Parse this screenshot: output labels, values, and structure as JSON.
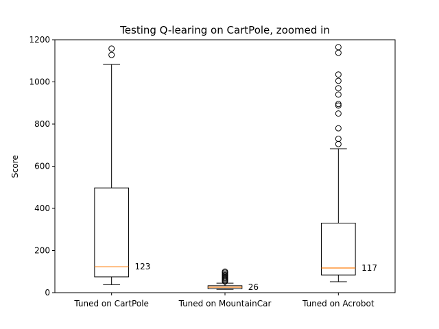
{
  "chart_data": {
    "type": "box",
    "title": "Testing Q-learing on CartPole, zoomed in",
    "xlabel": "",
    "ylabel": "Score",
    "ylim": [
      0,
      1200
    ],
    "yticks": [
      0,
      200,
      400,
      600,
      800,
      1000,
      1200
    ],
    "categories": [
      "Tuned on CartPole",
      "Tuned on MountainCar",
      "Tuned on Acrobot"
    ],
    "boxes": [
      {
        "label": "Tuned on CartPole",
        "whisker_low": 38,
        "q1": 75,
        "median": 123,
        "q3": 497,
        "whisker_high": 1083,
        "outliers": [
          1128,
          1158
        ],
        "median_label": "123"
      },
      {
        "label": "Tuned on MountainCar",
        "whisker_low": 16,
        "q1": 19,
        "median": 26,
        "q3": 33,
        "whisker_high": 45,
        "outliers": [
          53,
          58,
          63,
          68,
          72,
          78,
          83,
          88,
          95,
          100
        ],
        "median_label": "26"
      },
      {
        "label": "Tuned on Acrobot",
        "whisker_low": 52,
        "q1": 84,
        "median": 117,
        "q3": 330,
        "whisker_high": 683,
        "outliers": [
          705,
          730,
          780,
          850,
          888,
          895,
          940,
          970,
          1005,
          1035,
          1138,
          1165
        ],
        "median_label": "117"
      }
    ],
    "colors": {
      "box": "#000000",
      "median": "#ff7f0e"
    },
    "grid": false,
    "legend": "none"
  }
}
